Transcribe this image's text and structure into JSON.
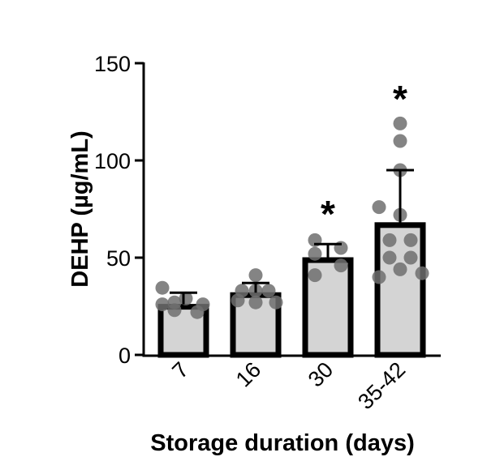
{
  "chart_data": {
    "type": "bar",
    "title": "",
    "xlabel": "Storage duration (days)",
    "ylabel": "DEHP (µg/mL)",
    "ylim": [
      0,
      150
    ],
    "yticks": [
      0,
      50,
      100,
      150
    ],
    "grid": false,
    "legend": null,
    "categories": [
      "7",
      "16",
      "30",
      "35-42"
    ],
    "values": [
      26,
      32,
      50,
      68
    ],
    "error_upper": [
      32,
      37,
      57,
      95
    ],
    "significance": [
      "",
      "",
      "*",
      "*"
    ],
    "points": [
      [
        34.5,
        29,
        27,
        26,
        26,
        23,
        22
      ],
      [
        41,
        33,
        33,
        33,
        28,
        27,
        27
      ],
      [
        59,
        55,
        52,
        46,
        41
      ],
      [
        119,
        110,
        95,
        76,
        72,
        59,
        59,
        50,
        50,
        44,
        42,
        40
      ]
    ],
    "colors": {
      "bar_fill": "#d4d4d4",
      "bar_stroke": "#000000",
      "point": "#6e6e6e",
      "axis": "#000000"
    }
  }
}
